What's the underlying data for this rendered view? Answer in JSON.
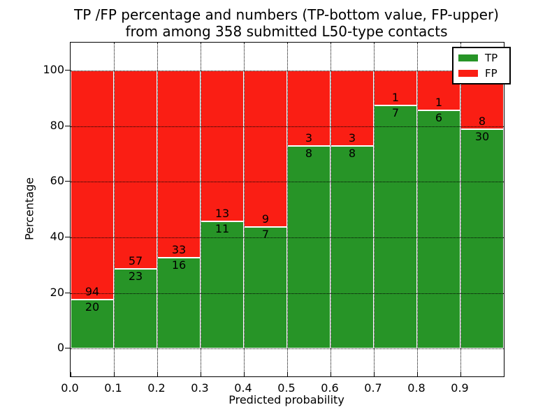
{
  "chart_data": {
    "type": "bar",
    "stacked": true,
    "title_lines": [
      "TP /FP percentage and numbers (TP-bottom value, FP-upper)",
      "from among 358 submitted L50-type contacts"
    ],
    "xlabel": "Predicted probability",
    "ylabel": "Percentage",
    "xlim": [
      0.0,
      1.0
    ],
    "ylim": [
      -10,
      110
    ],
    "xtick_labels": [
      "0.0",
      "0.1",
      "0.2",
      "0.3",
      "0.4",
      "0.5",
      "0.6",
      "0.7",
      "0.8",
      "0.9"
    ],
    "ytick_values": [
      0,
      20,
      40,
      60,
      80,
      100
    ],
    "grid": "dotted, drawn above bars",
    "legend": {
      "position": "upper right",
      "entries": [
        {
          "label": "TP",
          "color": "#279427"
        },
        {
          "label": "FP",
          "color": "#fa1e14"
        }
      ]
    },
    "bins": [
      {
        "range": [
          0.0,
          0.1
        ],
        "tp": 20,
        "fp": 94
      },
      {
        "range": [
          0.1,
          0.2
        ],
        "tp": 23,
        "fp": 57
      },
      {
        "range": [
          0.2,
          0.3
        ],
        "tp": 16,
        "fp": 33
      },
      {
        "range": [
          0.3,
          0.4
        ],
        "tp": 11,
        "fp": 13
      },
      {
        "range": [
          0.4,
          0.5
        ],
        "tp": 7,
        "fp": 9
      },
      {
        "range": [
          0.5,
          0.6
        ],
        "tp": 8,
        "fp": 3
      },
      {
        "range": [
          0.6,
          0.7
        ],
        "tp": 8,
        "fp": 3
      },
      {
        "range": [
          0.7,
          0.8
        ],
        "tp": 7,
        "fp": 1
      },
      {
        "range": [
          0.8,
          0.9
        ],
        "tp": 6,
        "fp": 1
      },
      {
        "range": [
          0.9,
          1.0
        ],
        "tp": 30,
        "fp": 8
      }
    ],
    "series": [
      {
        "name": "TP",
        "values": [
          20,
          23,
          16,
          11,
          7,
          8,
          8,
          7,
          6,
          30
        ]
      },
      {
        "name": "FP",
        "values": [
          94,
          57,
          33,
          13,
          9,
          3,
          3,
          1,
          1,
          8
        ]
      }
    ],
    "note": "bar heights are stacked percentages tp/(tp+fp)*100; labels show raw counts"
  },
  "colors": {
    "tp_green": "#279427",
    "fp_red": "#fa1e14",
    "grid": "#000000",
    "bar_edge": "#ffffff"
  }
}
